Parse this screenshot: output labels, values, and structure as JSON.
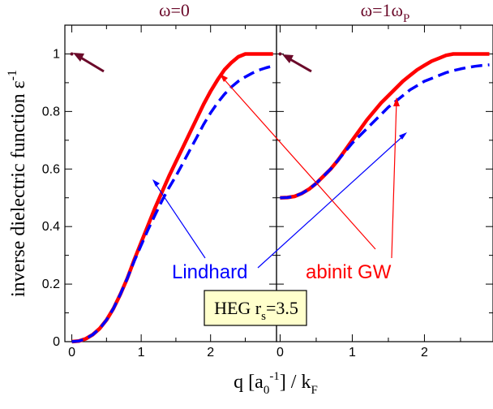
{
  "chart_data": [
    {
      "type": "line",
      "title": "ω=0",
      "xlim": [
        -0.1,
        2.95
      ],
      "ylim": [
        0,
        1.1
      ],
      "x_ticks": [
        "0",
        "1",
        "2"
      ],
      "series": [
        {
          "name": "abinit GW",
          "color": "#ff0000",
          "style": "solid",
          "x": [
            0.0,
            0.1,
            0.2,
            0.3,
            0.4,
            0.5,
            0.6,
            0.7,
            0.8,
            0.9,
            1.0,
            1.1,
            1.2,
            1.3,
            1.4,
            1.5,
            1.6,
            1.7,
            1.8,
            1.9,
            2.0,
            2.1,
            2.2,
            2.3,
            2.4,
            2.5,
            2.6,
            2.7,
            2.8,
            2.9
          ],
          "y": [
            0.0,
            0.002,
            0.01,
            0.024,
            0.045,
            0.075,
            0.115,
            0.165,
            0.22,
            0.285,
            0.345,
            0.405,
            0.465,
            0.52,
            0.575,
            0.625,
            0.675,
            0.725,
            0.775,
            0.825,
            0.87,
            0.91,
            0.945,
            0.97,
            0.99,
            1.0,
            1.0,
            1.0,
            1.0,
            1.0
          ]
        },
        {
          "name": "Lindhard",
          "color": "#0000ff",
          "style": "dashed",
          "x": [
            0.0,
            0.1,
            0.2,
            0.3,
            0.4,
            0.5,
            0.6,
            0.7,
            0.8,
            0.9,
            1.0,
            1.1,
            1.2,
            1.3,
            1.4,
            1.5,
            1.6,
            1.7,
            1.8,
            1.9,
            2.0,
            2.1,
            2.2,
            2.3,
            2.4,
            2.5,
            2.6,
            2.7,
            2.8,
            2.9
          ],
          "y": [
            0.0,
            0.002,
            0.01,
            0.024,
            0.045,
            0.075,
            0.115,
            0.165,
            0.22,
            0.28,
            0.335,
            0.39,
            0.44,
            0.49,
            0.535,
            0.575,
            0.62,
            0.665,
            0.71,
            0.755,
            0.795,
            0.83,
            0.86,
            0.885,
            0.905,
            0.92,
            0.933,
            0.944,
            0.952,
            0.958
          ]
        }
      ]
    },
    {
      "type": "line",
      "title": "ω=1ω_P",
      "xlim": [
        -0.05,
        2.95
      ],
      "ylim": [
        0,
        1.1
      ],
      "x_ticks": [
        "0",
        "1",
        "2"
      ],
      "series": [
        {
          "name": "abinit GW",
          "color": "#ff0000",
          "style": "solid",
          "x": [
            0.0,
            0.1,
            0.2,
            0.3,
            0.4,
            0.5,
            0.6,
            0.7,
            0.8,
            0.9,
            1.0,
            1.1,
            1.2,
            1.3,
            1.4,
            1.5,
            1.6,
            1.7,
            1.8,
            1.9,
            2.0,
            2.1,
            2.2,
            2.3,
            2.4,
            2.5,
            2.6,
            2.7,
            2.8,
            2.9
          ],
          "y": [
            0.5,
            0.501,
            0.505,
            0.515,
            0.53,
            0.55,
            0.575,
            0.6,
            0.63,
            0.665,
            0.7,
            0.735,
            0.77,
            0.8,
            0.83,
            0.855,
            0.88,
            0.905,
            0.925,
            0.945,
            0.96,
            0.975,
            0.985,
            0.995,
            1.0,
            1.0,
            1.0,
            1.0,
            1.0,
            1.0
          ]
        },
        {
          "name": "Lindhard",
          "color": "#0000ff",
          "style": "dashed",
          "x": [
            0.0,
            0.1,
            0.2,
            0.3,
            0.4,
            0.5,
            0.6,
            0.7,
            0.8,
            0.9,
            1.0,
            1.1,
            1.2,
            1.3,
            1.4,
            1.5,
            1.6,
            1.7,
            1.8,
            1.9,
            2.0,
            2.1,
            2.2,
            2.3,
            2.4,
            2.5,
            2.6,
            2.7,
            2.8,
            2.9
          ],
          "y": [
            0.5,
            0.501,
            0.505,
            0.515,
            0.53,
            0.55,
            0.575,
            0.6,
            0.63,
            0.66,
            0.69,
            0.715,
            0.74,
            0.765,
            0.79,
            0.815,
            0.835,
            0.855,
            0.875,
            0.89,
            0.905,
            0.915,
            0.925,
            0.935,
            0.942,
            0.948,
            0.953,
            0.957,
            0.96,
            0.962
          ]
        }
      ]
    }
  ],
  "shared": {
    "y_ticks": [
      "0",
      "0.2",
      "0.4",
      "0.6",
      "0.8",
      "1"
    ],
    "y_tick_values": [
      0,
      0.2,
      0.4,
      0.6,
      0.8,
      1.0
    ],
    "ylabel": "inverse dielectric function ε",
    "ylabel_sup": "-1",
    "xlabel_parts": {
      "a": "q [a",
      "sub": "0",
      "sup": "-1",
      "b": "] / k",
      "sub2": "F"
    },
    "panel_titles": {
      "left": "ω=0",
      "right_main": "ω=1ω",
      "right_sub": "P"
    },
    "legend": {
      "lindhard": "Lindhard",
      "gw": "abinit GW"
    },
    "info_box": {
      "main": "HEG r",
      "sub": "s",
      "tail": "=3.5"
    },
    "colors": {
      "gw": "#ff0000",
      "lindhard": "#0000ff",
      "arrow": "#6b0a2a",
      "box_fill": "#ffffcc",
      "title": "#6b0a2a"
    }
  }
}
